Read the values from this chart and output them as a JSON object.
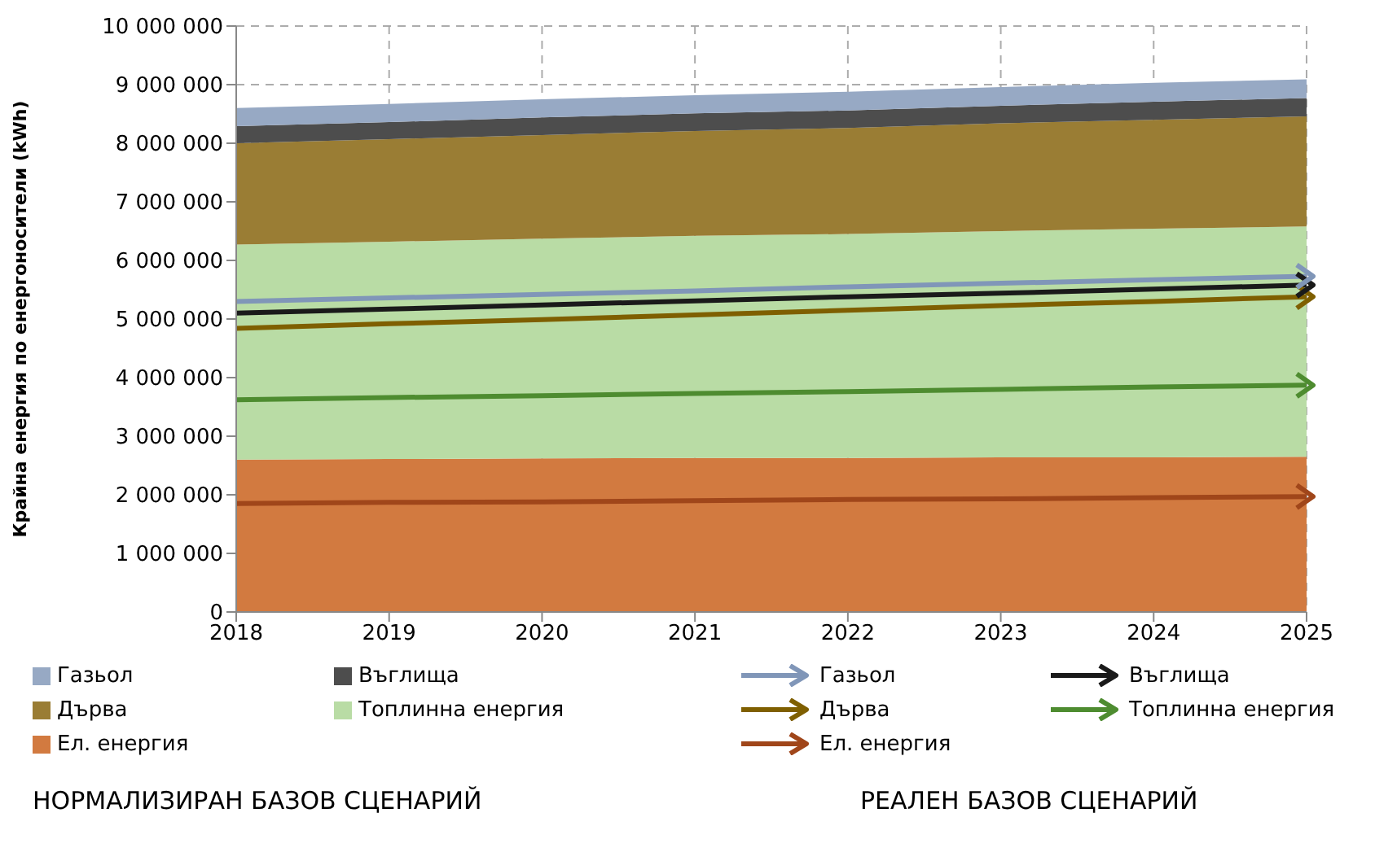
{
  "chart_data": {
    "type": "area",
    "ylabel": "Крайна енергия по енергоносители (kWh)",
    "x": [
      2018,
      2019,
      2020,
      2021,
      2022,
      2023,
      2024,
      2025
    ],
    "xlim": [
      2018,
      2025
    ],
    "xticks": [
      2018,
      2019,
      2020,
      2021,
      2022,
      2023,
      2024,
      2025
    ],
    "ylim": [
      0,
      10000000
    ],
    "yticks": [
      0,
      {
        "value": 1000000,
        "label": "1 000 000"
      },
      {
        "value": 2000000,
        "label": "2 000 000"
      },
      {
        "value": 3000000,
        "label": "3 000 000"
      },
      {
        "value": 4000000,
        "label": "4 000 000"
      },
      {
        "value": 5000000,
        "label": "5 000 000"
      },
      {
        "value": 6000000,
        "label": "6 000 000"
      },
      {
        "value": 7000000,
        "label": "7 000 000"
      },
      {
        "value": 8000000,
        "label": "8 000 000"
      },
      {
        "value": 9000000,
        "label": "9 000 000"
      },
      {
        "value": 10000000,
        "label": "10 000 000"
      }
    ],
    "stacked": true,
    "grid": true,
    "legend": "bottom",
    "annotations": [
      "НОРМАЛИЗИРАН БАЗОВ СЦЕНАРИЙ",
      "РЕАЛЕН БАЗОВ СЦЕНАРИЙ"
    ],
    "series": [
      {
        "name": "Ел. енергия",
        "color": "#d27a40",
        "values": [
          2600000,
          2610000,
          2620000,
          2630000,
          2630000,
          2640000,
          2640000,
          2650000
        ]
      },
      {
        "name": "Топлинна енергия",
        "color": "#b9dca5",
        "values": [
          3670000,
          3710000,
          3750000,
          3790000,
          3820000,
          3860000,
          3900000,
          3930000
        ]
      },
      {
        "name": "Дърва",
        "color": "#9a7d34",
        "values": [
          1730000,
          1750000,
          1770000,
          1790000,
          1810000,
          1840000,
          1860000,
          1880000
        ]
      },
      {
        "name": "Въглища",
        "color": "#4d4d4d",
        "values": [
          290000,
          290000,
          300000,
          300000,
          300000,
          300000,
          310000,
          310000
        ]
      },
      {
        "name": "Газьол",
        "color": "#97a9c4",
        "values": [
          310000,
          310000,
          310000,
          310000,
          320000,
          320000,
          320000,
          320000
        ]
      },
      {
        "name": "Ел. енергия",
        "type": "line",
        "color": "#a0461a",
        "values": [
          1850000,
          1870000,
          1880000,
          1900000,
          1920000,
          1930000,
          1950000,
          1970000
        ]
      },
      {
        "name": "Топлинна енергия",
        "type": "line",
        "color": "#4e8c30",
        "values": [
          3620000,
          3660000,
          3690000,
          3730000,
          3760000,
          3800000,
          3840000,
          3870000
        ]
      },
      {
        "name": "Дърва",
        "type": "line",
        "color": "#7f5f00",
        "values": [
          4840000,
          4920000,
          4990000,
          5070000,
          5150000,
          5230000,
          5300000,
          5380000
        ]
      },
      {
        "name": "Въглища",
        "type": "line",
        "color": "#1a1a1a",
        "values": [
          5100000,
          5170000,
          5240000,
          5310000,
          5380000,
          5440000,
          5510000,
          5580000
        ]
      },
      {
        "name": "Газьол",
        "type": "line",
        "color": "#8096b8",
        "values": [
          5300000,
          5360000,
          5420000,
          5480000,
          5550000,
          5610000,
          5670000,
          5730000
        ]
      }
    ]
  }
}
